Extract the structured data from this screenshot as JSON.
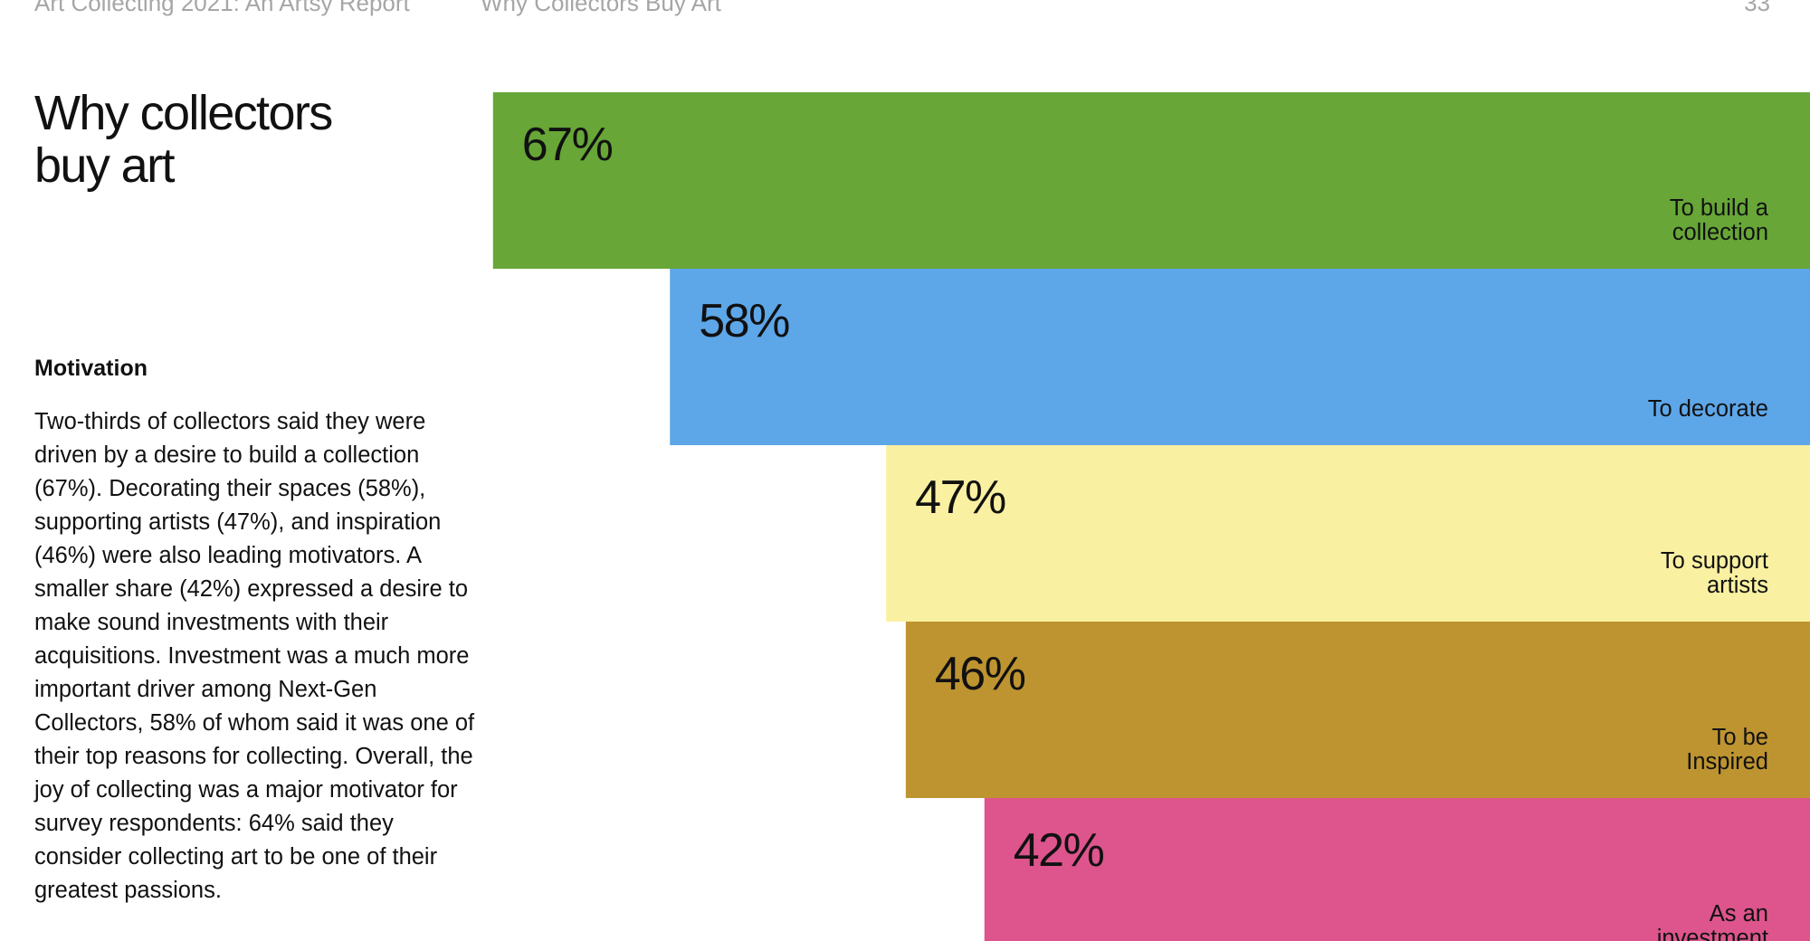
{
  "header": {
    "report_title": "Art Collecting 2021: An Artsy Report",
    "section_title": "Why Collectors Buy Art",
    "page_number": "33"
  },
  "main": {
    "title_lines": [
      "Why collectors",
      "buy art"
    ],
    "subheading": "Motivation",
    "body": "Two-thirds of collectors said they were driven by a desire to build a collection (67%). Decorating their spaces (58%), supporting artists (47%), and inspiration (46%) were also leading motivators. A smaller share (42%) expressed a desire to make sound investments with their acquisitions. Investment was a much more important driver among Next-Gen Collectors, 58% of whom said it was one of their top reasons for collecting. Overall, the joy of collecting was a major motivator for survey respondents: 64% said they consider collecting art to be one of their greatest passions."
  },
  "chart_data": {
    "type": "bar",
    "orientation": "horizontal",
    "categories": [
      [
        "To build a",
        "collection"
      ],
      [
        "To decorate"
      ],
      [
        "To support",
        "artists"
      ],
      [
        "To be",
        "Inspired"
      ],
      [
        "As an",
        "investment"
      ]
    ],
    "values": [
      67,
      58,
      47,
      46,
      42
    ],
    "value_labels": [
      "67%",
      "58%",
      "47%",
      "46%",
      "42%"
    ],
    "colors": [
      "#67a637",
      "#5da6e8",
      "#f9f0a1",
      "#bd9430",
      "#dd558c"
    ],
    "bar_anchor": "right",
    "grid": false,
    "legend": "none"
  }
}
